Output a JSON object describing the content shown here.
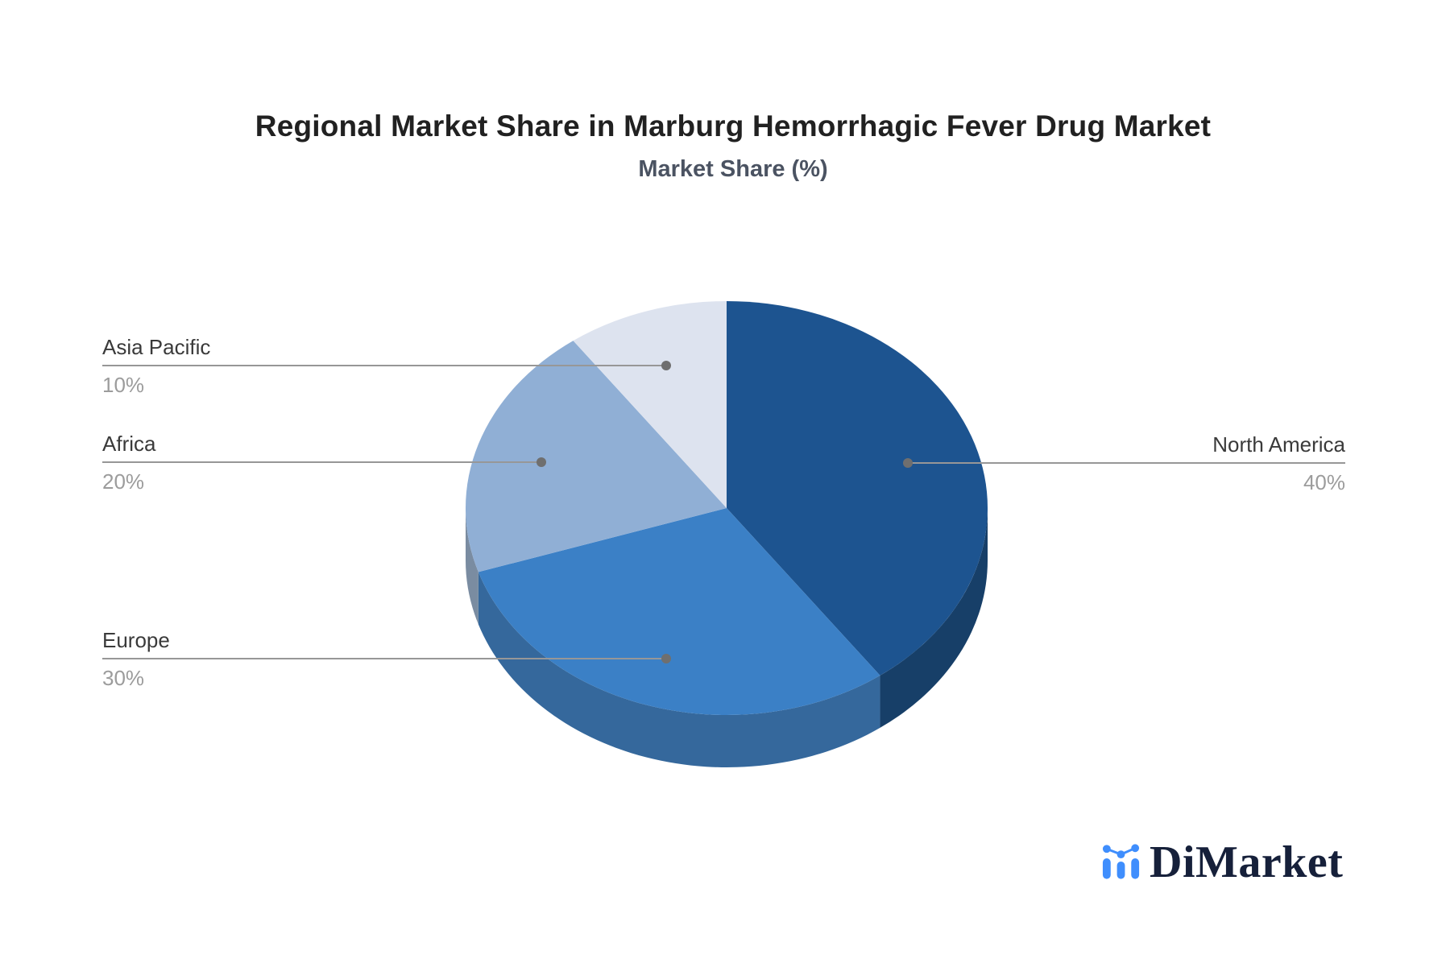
{
  "header": {
    "title": "Regional Market Share in Marburg Hemorrhagic Fever Drug Market",
    "subtitle": "Market Share (%)"
  },
  "chart_data": {
    "type": "pie",
    "style": "3d-pie",
    "title": "Regional Market Share in Marburg Hemorrhagic Fever Drug Market",
    "subtitle": "Market Share (%)",
    "value_unit": "%",
    "start_angle_deg": 0,
    "direction": "clockwise",
    "legend": "none",
    "label_style": "callout-leader-lines",
    "categories": [
      "North America",
      "Europe",
      "Africa",
      "Asia Pacific"
    ],
    "values": [
      40,
      30,
      20,
      10
    ],
    "slices": [
      {
        "label": "North America",
        "value": 40,
        "display_value": "40%",
        "color": "#1d5490",
        "side_color": "#173f68",
        "callout_side": "right"
      },
      {
        "label": "Europe",
        "value": 30,
        "display_value": "30%",
        "color": "#3b80c6",
        "side_color": "#35689c",
        "callout_side": "left"
      },
      {
        "label": "Africa",
        "value": 20,
        "display_value": "20%",
        "color": "#90afd5",
        "side_color": "#7a8ca1",
        "callout_side": "left"
      },
      {
        "label": "Asia Pacific",
        "value": 10,
        "display_value": "10%",
        "color": "#dde3ef",
        "side_color": "#c3cce0",
        "callout_side": "left"
      }
    ]
  },
  "footer": {
    "logo_text": "DiMarket",
    "logo_icon": "bar-line-chart-icon",
    "logo_accent_color": "#3F8EFD",
    "logo_text_color": "#16203a"
  },
  "colors": {
    "background": "#ffffff",
    "title": "#212121",
    "subtitle": "#4b5362",
    "label_name": "#3a3a3a",
    "label_value": "#9c9c9c",
    "leader_line": "#979797",
    "leader_dot": "#6f6f6f"
  }
}
